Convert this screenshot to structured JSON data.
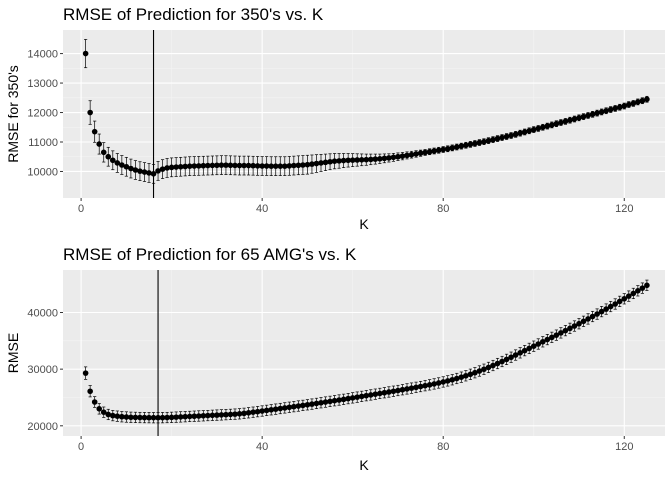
{
  "chart_data": [
    {
      "type": "scatter",
      "title": "RMSE of Prediction for 350's vs. K",
      "xlabel": "K",
      "ylabel": "RMSE for 350's",
      "xlim": [
        -4,
        129
      ],
      "ylim": [
        9100,
        14800
      ],
      "xticks": [
        0,
        40,
        80,
        120
      ],
      "yticks": [
        10000,
        11000,
        12000,
        13000,
        14000
      ],
      "xtick_labels": [
        "0",
        "40",
        "80",
        "120"
      ],
      "ytick_labels": [
        "10000",
        "11000",
        "12000",
        "13000",
        "14000"
      ],
      "vline_x": 16,
      "grid": true,
      "error_bars": true,
      "series": [
        {
          "x_start": 1,
          "x_step": 1,
          "values": [
            14000,
            12000,
            11350,
            10930,
            10650,
            10500,
            10380,
            10290,
            10220,
            10160,
            10100,
            10050,
            10010,
            9980,
            9950,
            9920,
            10020,
            10080,
            10120,
            10140,
            10150,
            10160,
            10170,
            10180,
            10185,
            10190,
            10195,
            10200,
            10205,
            10210,
            10215,
            10215,
            10210,
            10205,
            10200,
            10200,
            10200,
            10195,
            10190,
            10185,
            10185,
            10180,
            10180,
            10180,
            10180,
            10190,
            10200,
            10210,
            10220,
            10230,
            10250,
            10270,
            10290,
            10310,
            10330,
            10350,
            10360,
            10370,
            10380,
            10385,
            10390,
            10395,
            10400,
            10410,
            10420,
            10430,
            10445,
            10460,
            10480,
            10500,
            10520,
            10545,
            10570,
            10595,
            10620,
            10645,
            10670,
            10695,
            10720,
            10745,
            10770,
            10800,
            10830,
            10860,
            10890,
            10920,
            10950,
            10980,
            11010,
            11045,
            11080,
            11115,
            11150,
            11185,
            11220,
            11260,
            11300,
            11340,
            11380,
            11420,
            11460,
            11500,
            11540,
            11580,
            11620,
            11660,
            11700,
            11740,
            11780,
            11820,
            11860,
            11900,
            11940,
            11980,
            12020,
            12060,
            12100,
            12140,
            12180,
            12220,
            12270,
            12310,
            12360,
            12400,
            12450
          ],
          "errors": [
            480,
            400,
            360,
            340,
            330,
            320,
            320,
            320,
            320,
            320,
            320,
            320,
            320,
            320,
            320,
            320,
            320,
            320,
            320,
            320,
            320,
            320,
            320,
            320,
            320,
            320,
            320,
            320,
            320,
            320,
            320,
            320,
            320,
            320,
            320,
            320,
            320,
            320,
            320,
            320,
            320,
            320,
            320,
            320,
            320,
            320,
            320,
            320,
            320,
            320,
            310,
            300,
            290,
            280,
            270,
            260,
            250,
            240,
            230,
            220,
            210,
            200,
            190,
            180,
            170,
            160,
            150,
            140,
            135,
            130,
            125,
            120,
            115,
            110,
            105,
            100,
            100,
            100,
            100,
            100,
            100,
            100,
            100,
            100,
            100,
            100,
            100,
            100,
            100,
            100,
            100,
            100,
            100,
            100,
            100,
            100,
            100,
            100,
            100,
            100,
            100,
            100,
            100,
            100,
            100,
            100,
            100,
            100,
            100,
            100,
            100,
            100,
            100,
            100,
            100,
            100,
            100,
            100,
            100,
            100,
            100,
            100,
            100,
            100,
            100
          ]
        }
      ]
    },
    {
      "type": "scatter",
      "title": "RMSE of Prediction for 65 AMG's vs. K",
      "xlabel": "K",
      "ylabel": "RMSE",
      "xlim": [
        -4,
        129
      ],
      "ylim": [
        18200,
        47500
      ],
      "xticks": [
        0,
        40,
        80,
        120
      ],
      "yticks": [
        20000,
        30000,
        40000
      ],
      "xtick_labels": [
        "0",
        "40",
        "80",
        "120"
      ],
      "ytick_labels": [
        "20000",
        "30000",
        "40000"
      ],
      "vline_x": 17,
      "grid": true,
      "error_bars": true,
      "series": [
        {
          "x_start": 1,
          "x_step": 1,
          "values": [
            29300,
            26100,
            24200,
            23000,
            22400,
            22000,
            21800,
            21700,
            21600,
            21550,
            21500,
            21480,
            21460,
            21450,
            21440,
            21430,
            21430,
            21440,
            21460,
            21490,
            21530,
            21570,
            21610,
            21650,
            21690,
            21730,
            21770,
            21810,
            21850,
            21890,
            21930,
            21970,
            22010,
            22060,
            22120,
            22200,
            22300,
            22400,
            22500,
            22610,
            22720,
            22830,
            22940,
            23050,
            23160,
            23270,
            23380,
            23490,
            23600,
            23710,
            23830,
            23950,
            24070,
            24190,
            24310,
            24430,
            24550,
            24670,
            24800,
            24930,
            25060,
            25190,
            25320,
            25450,
            25580,
            25710,
            25840,
            25970,
            26100,
            26230,
            26370,
            26510,
            26650,
            26790,
            26930,
            27080,
            27230,
            27390,
            27560,
            27740,
            27930,
            28130,
            28350,
            28580,
            28830,
            29090,
            29370,
            29670,
            29980,
            30300,
            30640,
            30990,
            31350,
            31720,
            32100,
            32490,
            32880,
            33270,
            33660,
            34050,
            34440,
            34830,
            35220,
            35610,
            36000,
            36400,
            36800,
            37200,
            37610,
            38020,
            38440,
            38860,
            39290,
            39720,
            40160,
            40600,
            41050,
            41500,
            41960,
            42420,
            42890,
            43360,
            43830,
            44300,
            44800
          ],
          "errors": [
            1100,
            1000,
            950,
            930,
            920,
            920,
            920,
            920,
            920,
            920,
            920,
            920,
            920,
            920,
            920,
            920,
            920,
            920,
            920,
            920,
            920,
            920,
            920,
            920,
            920,
            920,
            920,
            920,
            920,
            920,
            920,
            920,
            920,
            920,
            920,
            920,
            920,
            920,
            920,
            920,
            920,
            920,
            920,
            920,
            920,
            920,
            920,
            920,
            920,
            920,
            920,
            920,
            920,
            920,
            920,
            920,
            920,
            920,
            920,
            920,
            920,
            920,
            920,
            920,
            920,
            920,
            920,
            920,
            920,
            920,
            920,
            920,
            920,
            920,
            920,
            920,
            920,
            920,
            920,
            920,
            920,
            920,
            920,
            920,
            920,
            920,
            920,
            920,
            920,
            920,
            920,
            920,
            920,
            920,
            920,
            920,
            920,
            920,
            920,
            920,
            920,
            920,
            920,
            920,
            920,
            920,
            920,
            920,
            920,
            920,
            920,
            920,
            920,
            920,
            920,
            920,
            920,
            920,
            920,
            920,
            920,
            920,
            920,
            920,
            920
          ]
        }
      ]
    }
  ]
}
